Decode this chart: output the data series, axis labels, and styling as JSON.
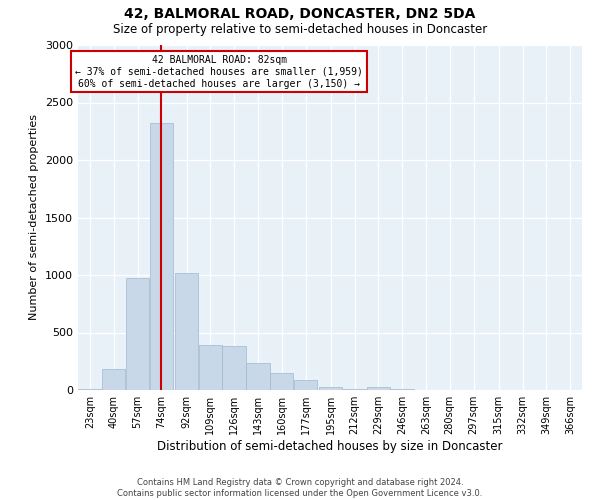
{
  "title_line1": "42, BALMORAL ROAD, DONCASTER, DN2 5DA",
  "title_line2": "Size of property relative to semi-detached houses in Doncaster",
  "xlabel": "Distribution of semi-detached houses by size in Doncaster",
  "ylabel": "Number of semi-detached properties",
  "footnote": "Contains HM Land Registry data © Crown copyright and database right 2024.\nContains public sector information licensed under the Open Government Licence v3.0.",
  "bar_color": "#c8d8e8",
  "bar_edge_color": "#a0b8cc",
  "background_color": "#e8f0f8",
  "grid_color": "#ffffff",
  "bin_labels": [
    "23sqm",
    "40sqm",
    "57sqm",
    "74sqm",
    "92sqm",
    "109sqm",
    "126sqm",
    "143sqm",
    "160sqm",
    "177sqm",
    "195sqm",
    "212sqm",
    "229sqm",
    "246sqm",
    "263sqm",
    "280sqm",
    "297sqm",
    "315sqm",
    "332sqm",
    "349sqm",
    "366sqm"
  ],
  "bin_edges": [
    23,
    40,
    57,
    74,
    92,
    109,
    126,
    143,
    160,
    177,
    195,
    212,
    229,
    246,
    263,
    280,
    297,
    315,
    332,
    349,
    366
  ],
  "bar_heights": [
    5,
    185,
    970,
    2320,
    1020,
    390,
    380,
    235,
    145,
    85,
    30,
    5,
    30,
    5,
    0,
    0,
    0,
    0,
    0,
    0,
    0
  ],
  "property_size": 82,
  "property_label": "42 BALMORAL ROAD: 82sqm",
  "pct_smaller": 37,
  "n_smaller": 1959,
  "pct_larger": 60,
  "n_larger": 3150,
  "annotation_box_color": "#ffffff",
  "annotation_box_edge": "#cc0000",
  "vline_color": "#cc0000",
  "ylim": [
    0,
    3000
  ],
  "yticks": [
    0,
    500,
    1000,
    1500,
    2000,
    2500,
    3000
  ],
  "fig_bg": "#ffffff"
}
